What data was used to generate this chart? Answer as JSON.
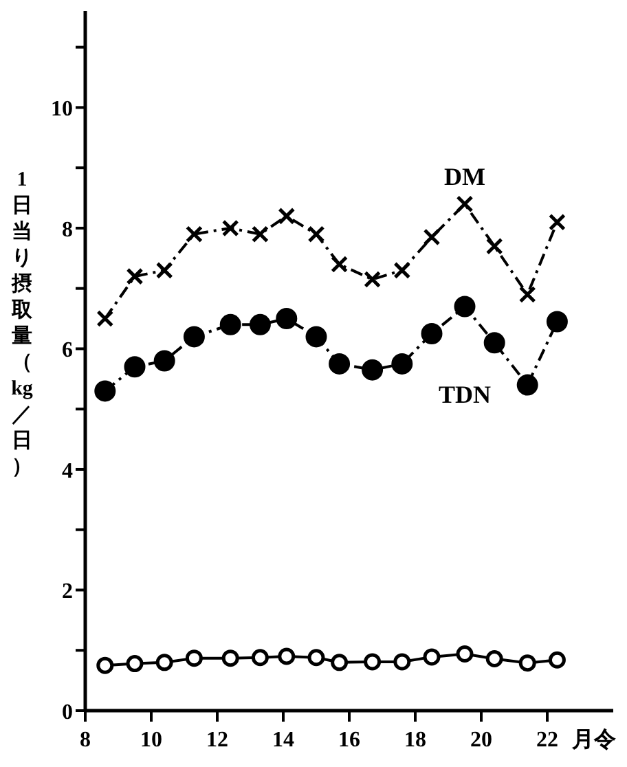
{
  "chart_data": {
    "type": "line",
    "xlabel": "月令",
    "ylabel": "1日当り摂取量（kg／日）",
    "xlim": [
      8,
      24
    ],
    "xticks": [
      8,
      10,
      12,
      14,
      16,
      18,
      20,
      22
    ],
    "ylim": [
      0,
      11.6
    ],
    "yticks": [
      0,
      {
        "value": 1,
        "label": null
      },
      2,
      {
        "value": 3,
        "label": null
      },
      4,
      {
        "value": 5,
        "label": null
      },
      6,
      {
        "value": 7,
        "label": null
      },
      8,
      {
        "value": 9,
        "label": null
      },
      10,
      {
        "value": 11,
        "label": null
      }
    ],
    "grid": false,
    "x": [
      8.6,
      9.5,
      10.4,
      11.3,
      12.4,
      13.3,
      14.1,
      15.0,
      15.7,
      16.7,
      17.6,
      18.5,
      19.5,
      20.4,
      21.4,
      22.3
    ],
    "series": [
      {
        "name": "DM",
        "color": "#000000",
        "marker": "cross",
        "line_style": "dashed",
        "values": [
          6.5,
          7.2,
          7.3,
          7.9,
          8.0,
          7.9,
          8.2,
          7.9,
          7.4,
          7.15,
          7.3,
          7.85,
          8.4,
          7.7,
          6.9,
          8.1
        ]
      },
      {
        "name": "TDN",
        "color": "#000000",
        "marker": "circle",
        "line_style": "dashed",
        "values": [
          5.3,
          5.7,
          5.8,
          6.2,
          6.4,
          6.4,
          6.5,
          6.2,
          5.75,
          5.65,
          5.75,
          6.25,
          6.7,
          6.1,
          5.4,
          6.45
        ]
      },
      {
        "color": "#000000",
        "marker": "circle",
        "line_style": "solid",
        "values": [
          0.75,
          0.78,
          0.8,
          0.87,
          0.87,
          0.88,
          0.9,
          0.88,
          0.8,
          0.81,
          0.81,
          0.89,
          0.94,
          0.86,
          0.79,
          0.84
        ]
      }
    ]
  }
}
